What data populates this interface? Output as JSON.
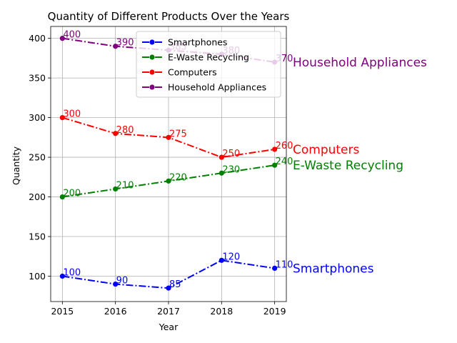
{
  "chart_data": {
    "type": "line",
    "title": "Quantity of Different Products Over the Years",
    "xlabel": "Year",
    "ylabel": "Quantity",
    "x": [
      2015,
      2016,
      2017,
      2018,
      2019
    ],
    "x_tick_labels": [
      "2015",
      "2016",
      "2017",
      "2018",
      "2019"
    ],
    "ylim": [
      68,
      415
    ],
    "y_ticks": [
      100,
      150,
      200,
      250,
      300,
      350,
      400
    ],
    "grid": true,
    "legend_position": "upper-right",
    "series": [
      {
        "name": "Smartphones",
        "color": "#0000ff",
        "values": [
          100,
          90,
          85,
          120,
          110
        ],
        "end_label": "Smartphones"
      },
      {
        "name": "E-Waste Recycling",
        "color": "#008000",
        "values": [
          200,
          210,
          220,
          230,
          240
        ],
        "end_label": "E-Waste Recycling"
      },
      {
        "name": "Computers",
        "color": "#ff0000",
        "values": [
          300,
          280,
          275,
          250,
          260
        ],
        "end_label": "Computers"
      },
      {
        "name": "Household Appliances",
        "color": "#800080",
        "values": [
          400,
          390,
          385,
          380,
          370
        ],
        "end_label": "Household Appliances"
      }
    ]
  }
}
